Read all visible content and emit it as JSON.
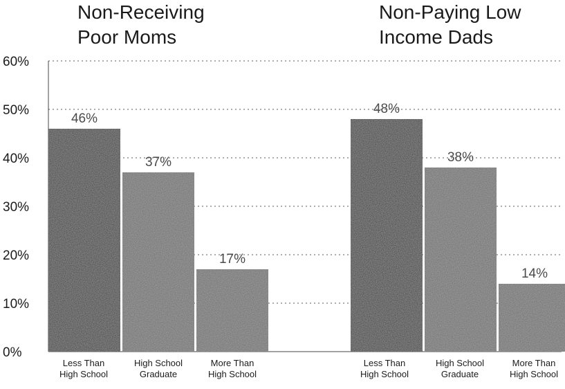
{
  "chart_data": {
    "type": "bar",
    "y_axis": {
      "min": 0,
      "max": 60,
      "ticks": [
        0,
        10,
        20,
        30,
        40,
        50,
        60
      ],
      "tick_labels": [
        "0%",
        "10%",
        "20%",
        "30%",
        "40%",
        "50%",
        "60%"
      ],
      "grid": "dotted"
    },
    "categories": [
      [
        "Less Than",
        "High School"
      ],
      [
        "High School",
        "Graduate"
      ],
      [
        "More Than",
        "High School"
      ]
    ],
    "panels": [
      {
        "title": [
          "Non-Receiving",
          "Poor Moms"
        ],
        "values": [
          46,
          37,
          17
        ],
        "value_labels": [
          "46%",
          "37%",
          "17%"
        ]
      },
      {
        "title": [
          "Non-Paying Low",
          "Income Dads"
        ],
        "values": [
          48,
          38,
          14
        ],
        "value_labels": [
          "48%",
          "38%",
          "14%"
        ]
      }
    ],
    "colors": {
      "bar_dark": "#2c2c2c",
      "bar_gray": "#656565"
    }
  }
}
